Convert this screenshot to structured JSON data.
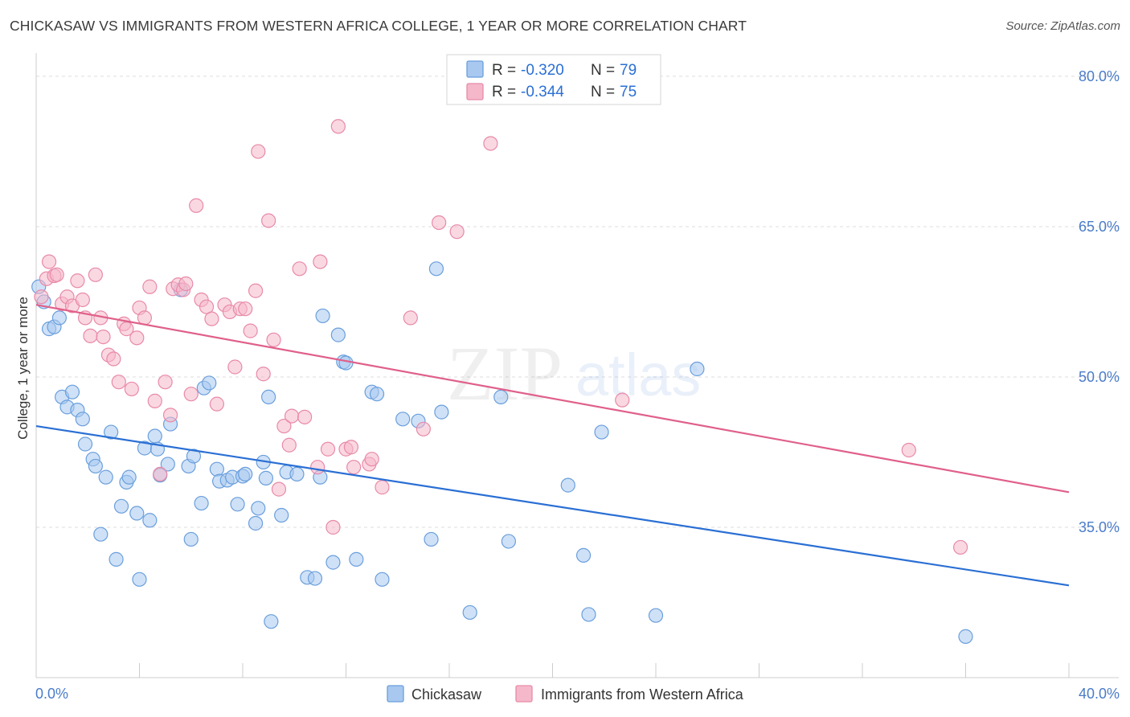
{
  "header": {
    "title": "CHICKASAW VS IMMIGRANTS FROM WESTERN AFRICA COLLEGE, 1 YEAR OR MORE CORRELATION CHART",
    "source": "Source: ZipAtlas.com"
  },
  "watermark": {
    "zip": "ZIP",
    "atlas": "atlas"
  },
  "legend": {
    "rows": [
      {
        "r_label": "R =",
        "r_value": "-0.320",
        "n_label": "N =",
        "n_value": "79",
        "color": "#a8c8f0"
      },
      {
        "r_label": "R =",
        "r_value": "-0.344",
        "n_label": "N =",
        "n_value": "75",
        "color": "#f5b8cb"
      }
    ]
  },
  "colors": {
    "blue_fill": "#a8c8f0",
    "blue_stroke": "#6a9fdc",
    "blue_line": "#2a6fd4",
    "pink_fill": "#f5b8cb",
    "pink_stroke": "#e88aa8",
    "pink_line": "#e0608a",
    "value_text": "#2a6fd4",
    "grid": "#dddddd"
  },
  "chart_data": {
    "type": "scatter",
    "ylabel": "College, 1 year or more",
    "xlim": [
      0,
      40
    ],
    "ylim": [
      20,
      82
    ],
    "x_tick_labels": [
      "0.0%",
      "40.0%"
    ],
    "y_ticks": [
      35,
      50,
      65,
      80
    ],
    "y_tick_labels": [
      "35.0%",
      "50.0%",
      "65.0%",
      "80.0%"
    ],
    "grid": "horizontal dashed",
    "legend_position": "top-center",
    "series": [
      {
        "name": "Chickasaw",
        "color": "#a8c8f0",
        "trend": {
          "x": [
            0,
            40
          ],
          "y": [
            45.1,
            29.2
          ]
        },
        "points": [
          [
            0.1,
            59.0
          ],
          [
            0.3,
            57.5
          ],
          [
            0.5,
            54.8
          ],
          [
            0.7,
            55.0
          ],
          [
            0.9,
            55.9
          ],
          [
            1.0,
            48.0
          ],
          [
            1.2,
            47.0
          ],
          [
            1.4,
            48.5
          ],
          [
            1.6,
            46.7
          ],
          [
            1.8,
            45.8
          ],
          [
            1.9,
            43.3
          ],
          [
            2.2,
            41.8
          ],
          [
            2.3,
            41.1
          ],
          [
            2.5,
            34.3
          ],
          [
            2.7,
            40.0
          ],
          [
            2.9,
            44.5
          ],
          [
            3.1,
            31.8
          ],
          [
            3.3,
            37.1
          ],
          [
            3.5,
            39.5
          ],
          [
            3.6,
            40.0
          ],
          [
            3.9,
            36.4
          ],
          [
            4.0,
            29.8
          ],
          [
            4.2,
            42.9
          ],
          [
            4.4,
            35.7
          ],
          [
            4.6,
            44.1
          ],
          [
            4.7,
            42.8
          ],
          [
            4.8,
            40.2
          ],
          [
            5.1,
            41.3
          ],
          [
            5.2,
            45.3
          ],
          [
            5.6,
            58.7
          ],
          [
            5.9,
            41.1
          ],
          [
            6.0,
            33.8
          ],
          [
            6.1,
            42.1
          ],
          [
            6.4,
            37.4
          ],
          [
            6.5,
            48.9
          ],
          [
            6.7,
            49.4
          ],
          [
            7.0,
            40.8
          ],
          [
            7.1,
            39.6
          ],
          [
            7.4,
            39.7
          ],
          [
            7.6,
            40.0
          ],
          [
            7.8,
            37.3
          ],
          [
            8.0,
            40.1
          ],
          [
            8.1,
            40.3
          ],
          [
            8.5,
            35.4
          ],
          [
            8.6,
            36.9
          ],
          [
            8.8,
            41.5
          ],
          [
            8.9,
            39.9
          ],
          [
            9.0,
            48.0
          ],
          [
            9.1,
            25.6
          ],
          [
            9.5,
            36.2
          ],
          [
            9.7,
            40.5
          ],
          [
            10.1,
            40.3
          ],
          [
            10.5,
            30.0
          ],
          [
            10.8,
            29.9
          ],
          [
            11.0,
            40.0
          ],
          [
            11.1,
            56.1
          ],
          [
            11.5,
            31.5
          ],
          [
            11.7,
            54.2
          ],
          [
            11.9,
            51.5
          ],
          [
            12.0,
            51.4
          ],
          [
            12.4,
            31.8
          ],
          [
            13.0,
            48.5
          ],
          [
            13.2,
            48.3
          ],
          [
            13.4,
            29.8
          ],
          [
            14.2,
            45.8
          ],
          [
            14.8,
            45.6
          ],
          [
            15.3,
            33.8
          ],
          [
            15.5,
            60.8
          ],
          [
            15.7,
            46.5
          ],
          [
            16.8,
            26.5
          ],
          [
            18.0,
            48.0
          ],
          [
            18.3,
            33.6
          ],
          [
            20.6,
            39.2
          ],
          [
            21.2,
            32.2
          ],
          [
            21.4,
            26.3
          ],
          [
            21.9,
            44.5
          ],
          [
            24.0,
            26.2
          ],
          [
            25.6,
            50.8
          ],
          [
            36.0,
            24.1
          ]
        ]
      },
      {
        "name": "Immigrants from Western Africa",
        "color": "#f5b8cb",
        "trend": {
          "x": [
            0,
            40
          ],
          "y": [
            57.2,
            38.5
          ]
        },
        "points": [
          [
            0.2,
            58.0
          ],
          [
            0.4,
            59.8
          ],
          [
            0.5,
            61.5
          ],
          [
            0.7,
            60.1
          ],
          [
            0.8,
            60.2
          ],
          [
            1.0,
            57.3
          ],
          [
            1.2,
            58.0
          ],
          [
            1.4,
            57.1
          ],
          [
            1.6,
            59.6
          ],
          [
            1.8,
            57.7
          ],
          [
            1.9,
            55.9
          ],
          [
            2.1,
            54.1
          ],
          [
            2.3,
            60.2
          ],
          [
            2.5,
            55.9
          ],
          [
            2.6,
            54.0
          ],
          [
            2.8,
            52.2
          ],
          [
            3.0,
            51.8
          ],
          [
            3.2,
            49.5
          ],
          [
            3.4,
            55.3
          ],
          [
            3.5,
            54.8
          ],
          [
            3.7,
            48.8
          ],
          [
            3.9,
            53.9
          ],
          [
            4.0,
            56.9
          ],
          [
            4.2,
            55.9
          ],
          [
            4.4,
            59.0
          ],
          [
            4.6,
            47.6
          ],
          [
            4.8,
            40.3
          ],
          [
            5.0,
            49.5
          ],
          [
            5.2,
            46.2
          ],
          [
            5.3,
            58.8
          ],
          [
            5.5,
            59.2
          ],
          [
            5.7,
            58.7
          ],
          [
            5.8,
            59.3
          ],
          [
            6.0,
            48.3
          ],
          [
            6.2,
            67.1
          ],
          [
            6.4,
            57.7
          ],
          [
            6.6,
            57.0
          ],
          [
            6.8,
            55.8
          ],
          [
            7.0,
            47.3
          ],
          [
            7.3,
            57.2
          ],
          [
            7.5,
            56.5
          ],
          [
            7.7,
            51.0
          ],
          [
            7.9,
            56.8
          ],
          [
            8.1,
            56.8
          ],
          [
            8.3,
            54.6
          ],
          [
            8.5,
            58.6
          ],
          [
            8.6,
            72.5
          ],
          [
            8.8,
            50.3
          ],
          [
            9.0,
            65.6
          ],
          [
            9.2,
            53.7
          ],
          [
            9.4,
            38.8
          ],
          [
            9.6,
            45.1
          ],
          [
            9.8,
            43.2
          ],
          [
            9.9,
            46.1
          ],
          [
            10.2,
            60.8
          ],
          [
            10.4,
            46.0
          ],
          [
            10.9,
            41.0
          ],
          [
            11.0,
            61.5
          ],
          [
            11.3,
            42.8
          ],
          [
            11.5,
            35.0
          ],
          [
            11.7,
            75.0
          ],
          [
            12.0,
            42.8
          ],
          [
            12.2,
            43.0
          ],
          [
            12.3,
            41.0
          ],
          [
            12.9,
            41.3
          ],
          [
            13.0,
            41.8
          ],
          [
            13.4,
            39.0
          ],
          [
            14.5,
            55.9
          ],
          [
            15.0,
            44.8
          ],
          [
            15.6,
            65.4
          ],
          [
            16.3,
            64.5
          ],
          [
            17.6,
            73.3
          ],
          [
            22.7,
            47.7
          ],
          [
            33.8,
            42.7
          ],
          [
            35.8,
            33.0
          ]
        ]
      }
    ]
  },
  "bottom_legend": {
    "items": [
      {
        "label": "Chickasaw",
        "color": "#a8c8f0"
      },
      {
        "label": "Immigrants from Western Africa",
        "color": "#f5b8cb"
      }
    ]
  }
}
